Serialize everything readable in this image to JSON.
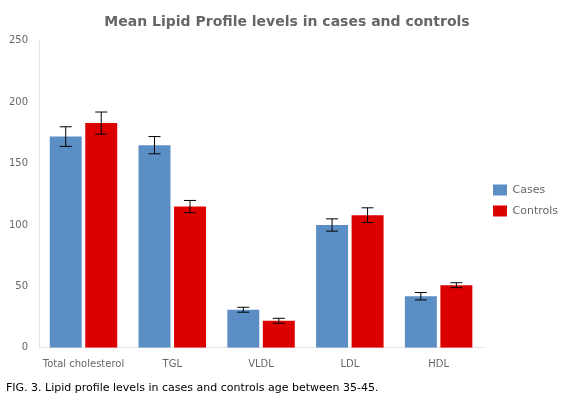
{
  "chart_data": {
    "type": "bar",
    "title": "Mean Lipid Profile levels in cases and controls",
    "caption": "FIG. 3. Lipid profile levels in cases and controls age between 35-45.",
    "categories": [
      "Total cholesterol",
      "TGL",
      "VLDL",
      "LDL",
      "HDL"
    ],
    "series": [
      {
        "name": "Cases",
        "color": "#5b8ec4",
        "values": [
          172,
          165,
          31,
          100,
          42
        ],
        "errors": [
          8,
          7,
          2,
          5,
          3
        ]
      },
      {
        "name": "Controls",
        "color": "#dd0000",
        "values": [
          183,
          115,
          22,
          108,
          51
        ],
        "errors": [
          9,
          5,
          2,
          6,
          2
        ]
      }
    ],
    "ylim": [
      0,
      250
    ],
    "yticks": [
      0,
      50,
      100,
      150,
      200,
      250
    ],
    "grid": false,
    "legend": "right"
  }
}
